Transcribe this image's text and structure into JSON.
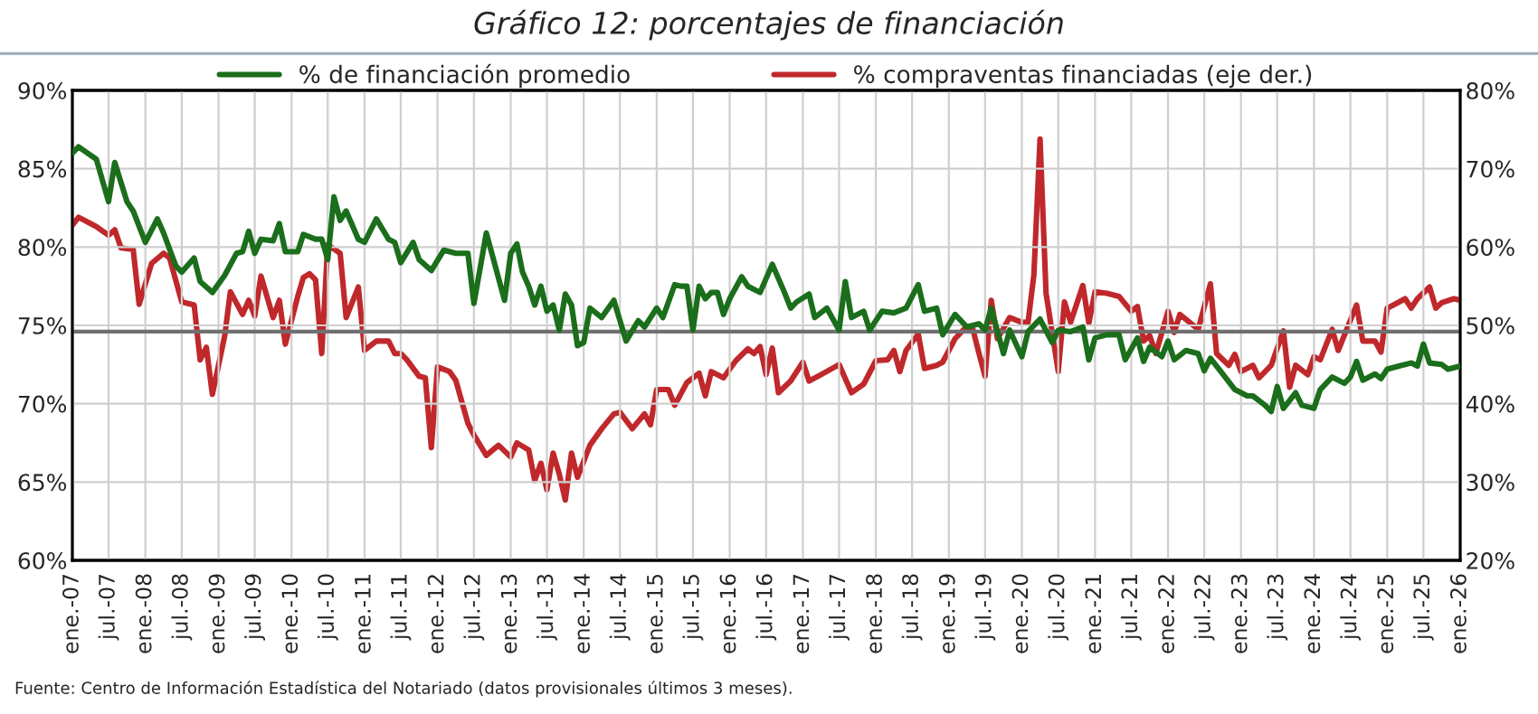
{
  "chart_data": {
    "type": "line",
    "title": "Gráfico 12: porcentajes de financiación",
    "x": [
      "2007-01",
      "2007-02",
      "2007-05",
      "2007-07",
      "2007-08",
      "2007-10",
      "2007-11",
      "2008-01",
      "2008-03",
      "2008-04",
      "2008-06",
      "2008-07",
      "2008-09",
      "2008-10",
      "2008-12",
      "2009-02",
      "2009-04",
      "2009-05",
      "2009-06",
      "2009-07",
      "2009-08",
      "2009-10",
      "2009-11",
      "2009-12",
      "2010-02",
      "2010-03",
      "2010-05",
      "2010-06",
      "2010-07",
      "2010-08",
      "2010-09",
      "2010-10",
      "2010-12",
      "2011-01",
      "2011-03",
      "2011-05",
      "2011-06",
      "2011-07",
      "2011-09",
      "2011-10",
      "2011-12",
      "2012-02",
      "2012-04",
      "2012-06",
      "2012-07",
      "2012-09",
      "2012-12",
      "2013-01",
      "2013-02",
      "2013-03",
      "2013-04",
      "2013-05",
      "2013-06",
      "2013-07",
      "2013-08",
      "2013-09",
      "2013-10",
      "2013-11",
      "2013-12",
      "2014-01",
      "2014-02",
      "2014-04",
      "2014-06",
      "2014-08",
      "2014-10",
      "2014-11",
      "2015-01",
      "2015-02",
      "2015-04",
      "2015-05",
      "2015-06",
      "2015-07",
      "2015-08",
      "2015-09",
      "2015-10",
      "2015-11",
      "2015-12",
      "2016-01",
      "2016-03",
      "2016-04",
      "2016-06",
      "2016-08",
      "2016-10",
      "2016-11",
      "2016-12",
      "2017-02",
      "2017-03",
      "2017-05",
      "2017-07",
      "2017-08",
      "2017-09",
      "2017-11",
      "2017-12",
      "2018-02",
      "2018-04",
      "2018-06",
      "2018-08",
      "2018-09",
      "2018-11",
      "2018-12",
      "2019-02",
      "2019-04",
      "2019-06",
      "2019-07",
      "2019-08",
      "2019-10",
      "2019-11",
      "2020-01",
      "2020-02",
      "2020-04",
      "2020-06",
      "2020-07",
      "2020-09",
      "2020-11",
      "2020-12",
      "2021-01",
      "2021-03",
      "2021-05",
      "2021-06",
      "2021-08",
      "2021-09",
      "2021-10",
      "2021-12",
      "2022-01",
      "2022-02",
      "2022-04",
      "2022-06",
      "2022-07",
      "2022-08",
      "2022-10",
      "2022-12",
      "2023-02",
      "2023-03",
      "2023-05",
      "2023-06",
      "2023-07",
      "2023-08",
      "2023-10",
      "2023-11",
      "2024-01",
      "2024-02",
      "2024-04",
      "2024-06",
      "2024-07",
      "2024-08",
      "2024-09",
      "2024-11",
      "2024-12",
      "2025-01",
      "2025-03",
      "2025-05",
      "2025-06",
      "2025-07",
      "2025-08",
      "2025-10",
      "2025-11",
      "2026-01"
    ],
    "series": [
      {
        "name": "% de financiación promedio",
        "color": "#1b6e1b",
        "values": [
          86.0,
          86.4,
          85.6,
          82.9,
          85.4,
          82.9,
          82.3,
          80.3,
          81.8,
          80.9,
          78.8,
          78.4,
          79.3,
          77.8,
          77.1,
          78.2,
          79.6,
          79.7,
          81.0,
          79.6,
          80.5,
          80.4,
          81.5,
          79.7,
          79.7,
          80.8,
          80.5,
          80.5,
          79.2,
          83.2,
          81.7,
          82.3,
          80.5,
          80.3,
          81.8,
          80.5,
          80.3,
          79.0,
          80.3,
          79.2,
          78.5,
          79.8,
          79.6,
          79.6,
          76.4,
          80.9,
          76.6,
          79.6,
          80.2,
          78.4,
          77.5,
          76.3,
          77.5,
          75.9,
          76.3,
          74.7,
          77.0,
          76.3,
          73.7,
          73.9,
          76.1,
          75.5,
          76.6,
          74.0,
          75.3,
          74.9,
          76.1,
          75.5,
          77.6,
          77.5,
          77.5,
          74.7,
          77.5,
          76.7,
          77.1,
          77.1,
          75.7,
          76.7,
          78.1,
          77.5,
          77.1,
          78.9,
          77.1,
          76.1,
          76.5,
          77.0,
          75.5,
          76.1,
          74.7,
          77.8,
          75.5,
          75.9,
          74.7,
          75.9,
          75.8,
          76.1,
          77.6,
          75.9,
          76.1,
          74.4,
          75.7,
          74.9,
          75.1,
          74.7,
          76.1,
          73.2,
          74.7,
          73.0,
          74.6,
          75.4,
          73.9,
          74.7,
          74.6,
          74.9,
          72.8,
          74.2,
          74.4,
          74.4,
          72.8,
          74.2,
          72.7,
          73.6,
          73.0,
          74.0,
          72.8,
          73.4,
          73.2,
          72.1,
          72.9,
          71.9,
          70.9,
          70.5,
          70.5,
          69.9,
          69.5,
          71.1,
          69.7,
          70.7,
          69.9,
          69.7,
          70.9,
          71.7,
          71.3,
          71.7,
          72.7,
          71.5,
          71.9,
          71.6,
          72.2,
          72.4,
          72.6,
          72.4,
          73.8,
          72.6,
          72.5,
          72.2,
          72.4
        ]
      },
      {
        "name": "% compraventas financiadas (eje der.)",
        "color": "#c0282b",
        "axis": "y2",
        "x": [
          "2007-01",
          "2007-02",
          "2007-05",
          "2007-07",
          "2007-08",
          "2007-09",
          "2007-11",
          "2007-12",
          "2008-02",
          "2008-04",
          "2008-05",
          "2008-07",
          "2008-09",
          "2008-10",
          "2008-11",
          "2008-12",
          "2009-02",
          "2009-03",
          "2009-05",
          "2009-06",
          "2009-07",
          "2009-08",
          "2009-10",
          "2009-11",
          "2009-12",
          "2010-02",
          "2010-03",
          "2010-04",
          "2010-05",
          "2010-06",
          "2010-07",
          "2010-09",
          "2010-10",
          "2010-12",
          "2011-01",
          "2011-03",
          "2011-05",
          "2011-06",
          "2011-07",
          "2011-08",
          "2011-10",
          "2011-11",
          "2011-12",
          "2012-01",
          "2012-03",
          "2012-04",
          "2012-06",
          "2012-07",
          "2012-09",
          "2012-11",
          "2013-01",
          "2013-02",
          "2013-04",
          "2013-05",
          "2013-06",
          "2013-07",
          "2013-08",
          "2013-09",
          "2013-10",
          "2013-11",
          "2013-12",
          "2014-02",
          "2014-04",
          "2014-06",
          "2014-07",
          "2014-09",
          "2014-11",
          "2014-12",
          "2015-01",
          "2015-03",
          "2015-04",
          "2015-06",
          "2015-08",
          "2015-09",
          "2015-10",
          "2015-12",
          "2016-02",
          "2016-04",
          "2016-05",
          "2016-06",
          "2016-07",
          "2016-08",
          "2016-09",
          "2016-11",
          "2017-01",
          "2017-02",
          "2017-04",
          "2017-07",
          "2017-09",
          "2017-11",
          "2018-01",
          "2018-03",
          "2018-04",
          "2018-05",
          "2018-06",
          "2018-08",
          "2018-09",
          "2018-11",
          "2018-12",
          "2019-02",
          "2019-04",
          "2019-05",
          "2019-06",
          "2019-07",
          "2019-08",
          "2019-09",
          "2019-11",
          "2020-01",
          "2020-02",
          "2020-03",
          "2020-04",
          "2020-05",
          "2020-07",
          "2020-08",
          "2020-09",
          "2020-11",
          "2020-12",
          "2021-01",
          "2021-03",
          "2021-05",
          "2021-07",
          "2021-08",
          "2021-09",
          "2021-10",
          "2021-11",
          "2022-01",
          "2022-02",
          "2022-03",
          "2022-06",
          "2022-08",
          "2022-09",
          "2022-11",
          "2022-12",
          "2023-01",
          "2023-03",
          "2023-04",
          "2023-06",
          "2023-08",
          "2023-09",
          "2023-10",
          "2023-12",
          "2024-01",
          "2024-02",
          "2024-04",
          "2024-05",
          "2024-08",
          "2024-09",
          "2024-11",
          "2024-12",
          "2025-01",
          "2025-02",
          "2025-04",
          "2025-05",
          "2025-06",
          "2025-08",
          "2025-09",
          "2025-10",
          "2025-12",
          "2026-01"
        ],
        "values": [
          62.8,
          63.8,
          62.6,
          61.5,
          62.2,
          59.9,
          59.7,
          52.7,
          57.9,
          59.2,
          58.6,
          53.0,
          52.6,
          45.6,
          47.2,
          41.2,
          48.7,
          54.3,
          51.4,
          53.2,
          51.2,
          56.3,
          51.0,
          53.2,
          47.6,
          53.7,
          56.1,
          56.6,
          55.8,
          46.4,
          60.3,
          59.2,
          51.0,
          54.9,
          46.8,
          48.0,
          48.0,
          46.4,
          46.4,
          45.6,
          43.5,
          43.3,
          34.4,
          44.7,
          44.1,
          43.0,
          37.5,
          36.0,
          33.4,
          34.7,
          33.2,
          35.0,
          34.1,
          30.2,
          32.4,
          29.0,
          33.7,
          31.0,
          27.7,
          33.7,
          30.6,
          34.7,
          36.8,
          38.7,
          38.9,
          36.8,
          38.7,
          37.3,
          41.8,
          41.8,
          39.8,
          42.7,
          43.9,
          41.0,
          44.1,
          43.3,
          45.5,
          47.0,
          46.4,
          47.3,
          43.7,
          47.1,
          41.4,
          42.9,
          45.3,
          42.9,
          43.7,
          45.0,
          41.4,
          42.5,
          45.5,
          45.6,
          46.8,
          44.1,
          46.8,
          48.9,
          44.5,
          44.9,
          45.3,
          48.3,
          49.9,
          49.5,
          46.4,
          43.5,
          53.2,
          48.3,
          51.0,
          50.4,
          50.4,
          56.4,
          73.8,
          54.1,
          44.1,
          53.0,
          50.4,
          55.1,
          50.3,
          54.3,
          54.1,
          53.7,
          51.8,
          52.4,
          48.0,
          48.7,
          46.4,
          51.8,
          49.1,
          51.4,
          49.5,
          55.3,
          46.4,
          44.9,
          46.3,
          44.1,
          44.9,
          43.3,
          44.9,
          49.3,
          42.1,
          44.9,
          43.7,
          46.0,
          45.6,
          49.5,
          46.8,
          52.6,
          48.0,
          48.0,
          46.6,
          52.2,
          52.6,
          53.4,
          52.2,
          53.4,
          54.9,
          52.2,
          52.9,
          53.4,
          53.2
        ]
      }
    ],
    "xlim": [
      "2007-01",
      "2026-01"
    ],
    "xticks": [
      {
        "value": "2007-01",
        "label": "ene.-07"
      },
      {
        "value": "2007-07",
        "label": "jul.-07"
      },
      {
        "value": "2008-01",
        "label": "ene.-08"
      },
      {
        "value": "2008-07",
        "label": "jul.-08"
      },
      {
        "value": "2009-01",
        "label": "ene.-09"
      },
      {
        "value": "2009-07",
        "label": "jul.-09"
      },
      {
        "value": "2010-01",
        "label": "ene.-10"
      },
      {
        "value": "2010-07",
        "label": "jul.-10"
      },
      {
        "value": "2011-01",
        "label": "ene.-11"
      },
      {
        "value": "2011-07",
        "label": "jul.-11"
      },
      {
        "value": "2012-01",
        "label": "ene.-12"
      },
      {
        "value": "2012-07",
        "label": "jul.-12"
      },
      {
        "value": "2013-01",
        "label": "ene.-13"
      },
      {
        "value": "2013-07",
        "label": "jul.-13"
      },
      {
        "value": "2014-01",
        "label": "ene.-14"
      },
      {
        "value": "2014-07",
        "label": "jul.-14"
      },
      {
        "value": "2015-01",
        "label": "ene.-15"
      },
      {
        "value": "2015-07",
        "label": "jul.-15"
      },
      {
        "value": "2016-01",
        "label": "ene.-16"
      },
      {
        "value": "2016-07",
        "label": "jul.-16"
      },
      {
        "value": "2017-01",
        "label": "ene.-17"
      },
      {
        "value": "2017-07",
        "label": "jul.-17"
      },
      {
        "value": "2018-01",
        "label": "ene.-18"
      },
      {
        "value": "2018-07",
        "label": "jul.-18"
      },
      {
        "value": "2019-01",
        "label": "ene.-19"
      },
      {
        "value": "2019-07",
        "label": "jul.-19"
      },
      {
        "value": "2020-01",
        "label": "ene.-20"
      },
      {
        "value": "2020-07",
        "label": "jul.-20"
      },
      {
        "value": "2021-01",
        "label": "ene.-21"
      },
      {
        "value": "2021-07",
        "label": "jul.-21"
      },
      {
        "value": "2022-01",
        "label": "ene.-22"
      },
      {
        "value": "2022-07",
        "label": "jul.-22"
      },
      {
        "value": "2023-01",
        "label": "ene.-23"
      },
      {
        "value": "2023-07",
        "label": "jul.-23"
      },
      {
        "value": "2024-01",
        "label": "ene.-24"
      },
      {
        "value": "2024-07",
        "label": "jul.-24"
      },
      {
        "value": "2025-01",
        "label": "ene.-25"
      },
      {
        "value": "2025-07",
        "label": "jul.-25"
      },
      {
        "value": "2026-01",
        "label": "ene.-26"
      }
    ],
    "ylim": [
      60,
      90
    ],
    "yticks": [
      {
        "value": 60,
        "label": "60%"
      },
      {
        "value": 65,
        "label": "65%"
      },
      {
        "value": 70,
        "label": "70%"
      },
      {
        "value": 75,
        "label": "75%"
      },
      {
        "value": 80,
        "label": "80%"
      },
      {
        "value": 85,
        "label": "85%"
      },
      {
        "value": 90,
        "label": "90%"
      }
    ],
    "y2lim": [
      20,
      80
    ],
    "y2ticks": [
      {
        "value": 20,
        "label": "20%"
      },
      {
        "value": 30,
        "label": "30%"
      },
      {
        "value": 40,
        "label": "40%"
      },
      {
        "value": 50,
        "label": "50%"
      },
      {
        "value": 60,
        "label": "60%"
      },
      {
        "value": 70,
        "label": "70%"
      },
      {
        "value": 80,
        "label": "80%"
      }
    ],
    "ref_lines": [
      {
        "axis": "y",
        "value": 74.6,
        "color": "#707070"
      }
    ],
    "grid": true,
    "legend": "top",
    "line_style": "solid",
    "marker": "none",
    "annotations": [
      "Fuente: Centro de Información Estadística del Notariado (datos provisionales últimos 3 meses)."
    ]
  }
}
